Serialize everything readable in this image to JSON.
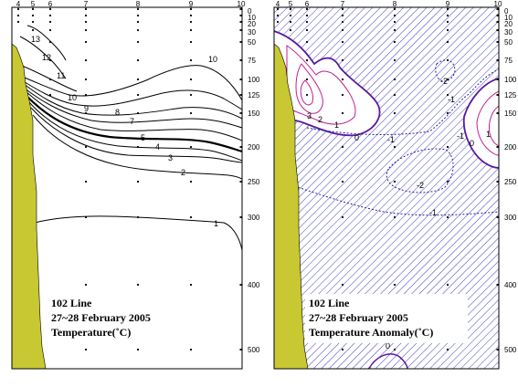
{
  "colors": {
    "land": "#c8c832",
    "temp_contour": "#000000",
    "anomaly_positive": "#c0208f",
    "anomaly_negative": "#2020a0",
    "anomaly_zero": "#5a1aa0",
    "hatch": "#4040c0"
  },
  "chart_data": [
    {
      "type": "contour",
      "title": "102 Line",
      "subtitle": "27~28 February 2005",
      "variable_label": "Temperature(˚C)",
      "station_ticks": [
        "4",
        "5",
        "6",
        "7",
        "8",
        "9",
        "10"
      ],
      "depth_ticks": [
        "0",
        "10",
        "20",
        "30",
        "50",
        "75",
        "100",
        "125",
        "150",
        "200",
        "250",
        "300",
        "400",
        "500"
      ],
      "ylim": [
        0,
        500
      ],
      "contour_levels": [
        1,
        2,
        3,
        4,
        5,
        6,
        7,
        8,
        9,
        10,
        11,
        12,
        13
      ],
      "bold_levels": [
        5
      ]
    },
    {
      "type": "contour",
      "title": "102 Line",
      "subtitle": "27~28 February 2005",
      "variable_label": "Temperature Anomaly(˚C)",
      "station_ticks": [
        "4",
        "5",
        "6",
        "7",
        "8",
        "9",
        "10"
      ],
      "depth_ticks": [
        "0",
        "10",
        "20",
        "30",
        "50",
        "75",
        "100",
        "125",
        "150",
        "200",
        "250",
        "300",
        "400",
        "500"
      ],
      "ylim": [
        0,
        500
      ],
      "contour_levels": [
        -2,
        -1,
        0,
        1,
        2,
        3
      ],
      "negative_hatched": true
    }
  ]
}
